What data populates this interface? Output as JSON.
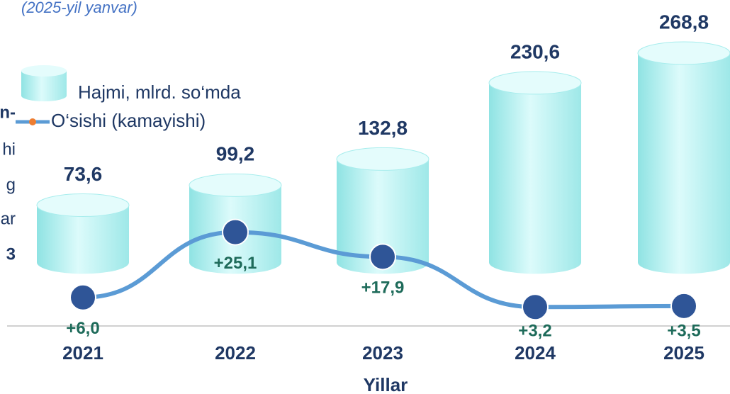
{
  "chart_data": {
    "type": "bar-line",
    "subtitle": "(2025-yil yanvar)",
    "side_text": [
      "n-",
      "hi",
      "g",
      "ar",
      "3"
    ],
    "x_label": "Yillar",
    "categories": [
      "2021",
      "2022",
      "2023",
      "2024",
      "2025"
    ],
    "ylim": [
      -77,
      337
    ],
    "y2lim": [
      -1.3,
      93
    ],
    "series": [
      {
        "name": "Hajmi, mlrd. so‘mda",
        "color": "#b4f0f0",
        "values": [
          73.6,
          99.2,
          132.8,
          230.6,
          268.8
        ],
        "value_labels": [
          "73,6",
          "99,2",
          "132,8",
          "230,6",
          "268,8"
        ]
      },
      {
        "name": "O‘sishi (kamayishi)",
        "color": "#5b9bd5",
        "axis": "y2",
        "values": [
          6.0,
          25.1,
          17.9,
          3.2,
          3.5
        ],
        "value_labels": [
          "+6,0",
          "+25,1",
          "+17,9",
          "+3,2",
          "+3,5"
        ]
      }
    ]
  }
}
